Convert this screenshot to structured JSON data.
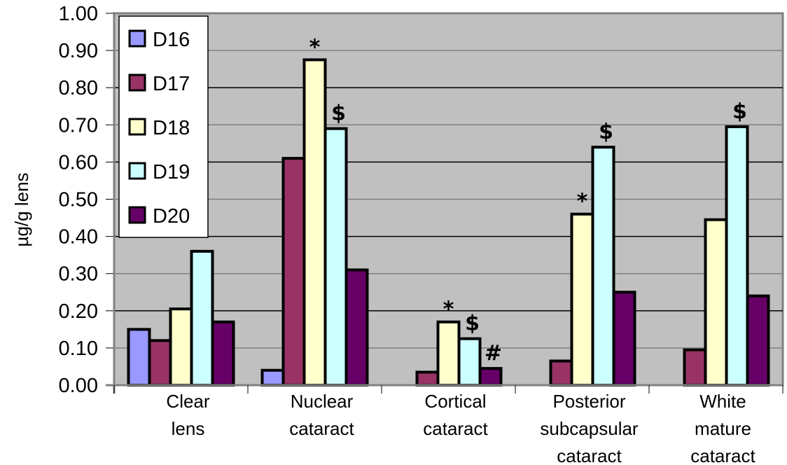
{
  "chart_data": {
    "type": "bar",
    "title": "",
    "xlabel": "",
    "ylabel": "µg/g lens",
    "ylim": [
      0,
      1.0
    ],
    "yticks": [
      "0.00",
      "0.10",
      "0.20",
      "0.30",
      "0.40",
      "0.50",
      "0.60",
      "0.70",
      "0.80",
      "0.90",
      "1.00"
    ],
    "grid": true,
    "legend_position": "top-left",
    "categories": [
      [
        "Clear",
        "lens"
      ],
      [
        "Nuclear",
        "cataract"
      ],
      [
        "Cortical",
        "cataract"
      ],
      [
        "Posterior",
        "subcapsular",
        "cataract"
      ],
      [
        "White",
        "mature",
        "cataract"
      ]
    ],
    "series": [
      {
        "name": "D16",
        "color": "#9999ff",
        "values": [
          0.15,
          0.04,
          null,
          null,
          null
        ]
      },
      {
        "name": "D17",
        "color": "#993366",
        "values": [
          0.12,
          0.61,
          0.035,
          0.065,
          0.095
        ]
      },
      {
        "name": "D18",
        "color": "#ffffcc",
        "values": [
          0.205,
          0.875,
          0.17,
          0.46,
          0.445
        ]
      },
      {
        "name": "D19",
        "color": "#ccffff",
        "values": [
          0.36,
          0.69,
          0.125,
          0.64,
          0.695
        ]
      },
      {
        "name": "D20",
        "color": "#660066",
        "values": [
          0.17,
          0.31,
          0.045,
          0.25,
          0.24
        ]
      }
    ],
    "annotations": [
      {
        "category": 1,
        "series": "D18",
        "text": "*"
      },
      {
        "category": 1,
        "series": "D19",
        "text": "$"
      },
      {
        "category": 2,
        "series": "D18",
        "text": "*"
      },
      {
        "category": 2,
        "series": "D19",
        "text": "$"
      },
      {
        "category": 2,
        "series": "D20",
        "text": "#"
      },
      {
        "category": 3,
        "series": "D18",
        "text": "*"
      },
      {
        "category": 3,
        "series": "D19",
        "text": "$"
      },
      {
        "category": 4,
        "series": "D19",
        "text": "$"
      }
    ],
    "plot_background": "#c0c0c0"
  }
}
